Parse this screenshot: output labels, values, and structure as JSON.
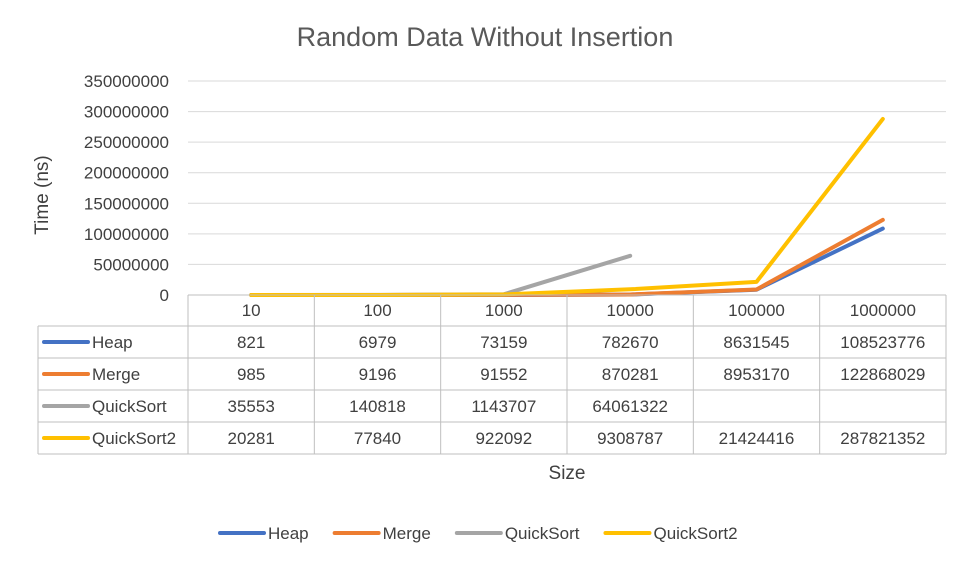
{
  "chart_data": {
    "type": "line",
    "title": "Random Data Without Insertion",
    "xlabel": "Size",
    "ylabel": "Time (ns)",
    "ylim": [
      0,
      350000000
    ],
    "yticks": [
      0,
      50000000,
      100000000,
      150000000,
      200000000,
      250000000,
      300000000,
      350000000
    ],
    "grid": true,
    "legend": "bottom",
    "data_table": true,
    "categories": [
      "10",
      "100",
      "1000",
      "10000",
      "100000",
      "1000000"
    ],
    "series": [
      {
        "name": "Heap",
        "color": "#4472C4",
        "values": [
          821,
          6979,
          73159,
          782670,
          8631545,
          108523776
        ]
      },
      {
        "name": "Merge",
        "color": "#ED7D31",
        "values": [
          985,
          9196,
          91552,
          870281,
          8953170,
          122868029
        ]
      },
      {
        "name": "QuickSort",
        "color": "#A5A5A5",
        "values": [
          35553,
          140818,
          1143707,
          64061322,
          null,
          null
        ]
      },
      {
        "name": "QuickSort2",
        "color": "#FFC000",
        "values": [
          20281,
          77840,
          922092,
          9308787,
          21424416,
          287821352
        ]
      }
    ]
  }
}
